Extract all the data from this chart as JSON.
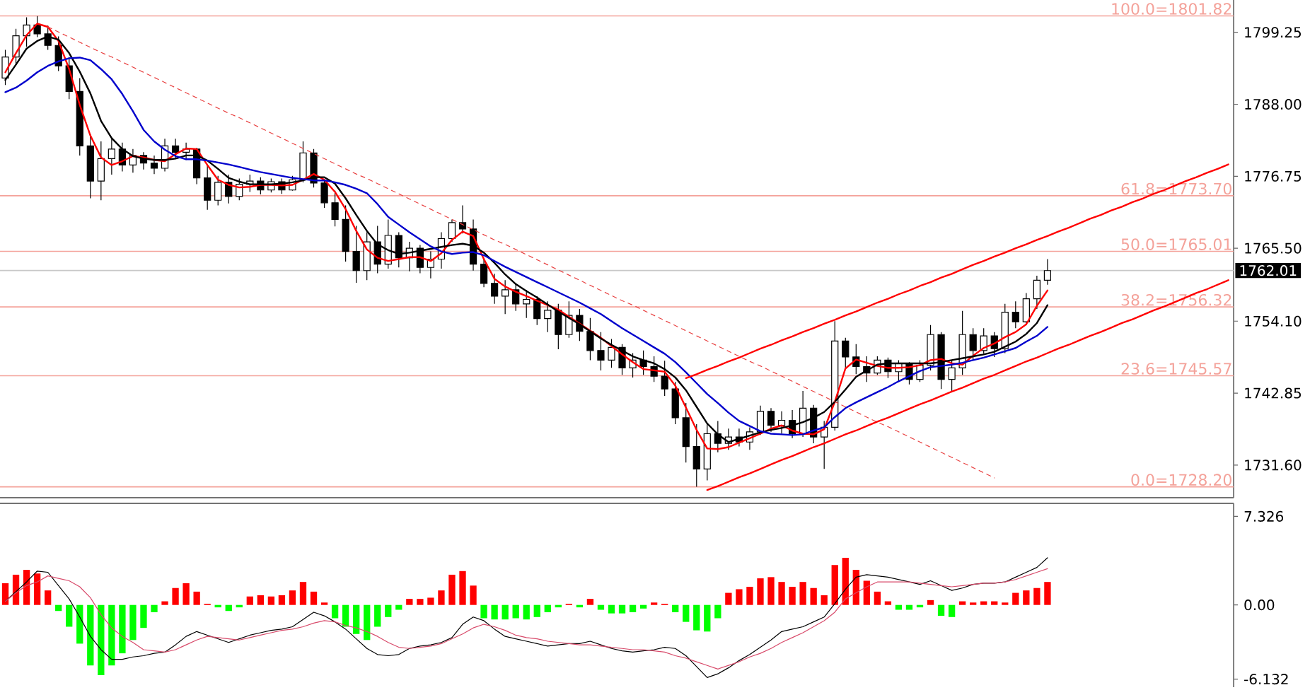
{
  "chart_data": [
    {
      "type": "candlestick",
      "categories": [
        null,
        null,
        null,
        null,
        null,
        null,
        null,
        null,
        null,
        null,
        null,
        null,
        null,
        null,
        null,
        null,
        null,
        null,
        null,
        null,
        null,
        null,
        null,
        null,
        null,
        null,
        null,
        null,
        null,
        null,
        null,
        null,
        null,
        null,
        null,
        null,
        null,
        null,
        null,
        null,
        null,
        null,
        null,
        null,
        null,
        null,
        null,
        null,
        null,
        null,
        null,
        null,
        null,
        null,
        null,
        null,
        null,
        null,
        null,
        null,
        null,
        null,
        null,
        null,
        null,
        null,
        null,
        null,
        null,
        null,
        null,
        null,
        null,
        null,
        null,
        null,
        null,
        null,
        null,
        null,
        null,
        null,
        null,
        null,
        null,
        null,
        null,
        null,
        null,
        null,
        null,
        null,
        null,
        null,
        null,
        null,
        null,
        null,
        null,
        null,
        null,
        null,
        null,
        null,
        null,
        null,
        null,
        null,
        null,
        null,
        null,
        null,
        null,
        null,
        null,
        null
      ],
      "ohlc": [
        [
          1792.1,
          1796.5,
          1791.0,
          1795.4
        ],
        [
          1795.4,
          1799.8,
          1794.3,
          1798.7
        ],
        [
          1798.7,
          1801.6,
          1797.0,
          1800.4
        ],
        [
          1800.4,
          1801.8,
          1798.5,
          1799.0
        ],
        [
          1799.0,
          1800.3,
          1796.5,
          1797.2
        ],
        [
          1797.2,
          1798.6,
          1793.2,
          1794.0
        ],
        [
          1794.0,
          1795.4,
          1788.8,
          1790.0
        ],
        [
          1790.0,
          1792.1,
          1780.0,
          1781.5
        ],
        [
          1781.5,
          1783.3,
          1773.3,
          1776.0
        ],
        [
          1776.0,
          1782.2,
          1773.0,
          1779.5
        ],
        [
          1779.5,
          1782.8,
          1777.0,
          1781.0
        ],
        [
          1781.0,
          1782.0,
          1777.5,
          1778.5
        ],
        [
          1778.5,
          1781.0,
          1777.3,
          1780.0
        ],
        [
          1780.0,
          1780.5,
          1777.8,
          1778.8
        ],
        [
          1778.8,
          1780.0,
          1777.1,
          1778.0
        ],
        [
          1778.0,
          1782.6,
          1777.5,
          1781.5
        ],
        [
          1781.5,
          1782.6,
          1779.5,
          1780.5
        ],
        [
          1780.5,
          1782.0,
          1779.3,
          1781.0
        ],
        [
          1781.0,
          1781.2,
          1775.5,
          1776.5
        ],
        [
          1776.5,
          1778.5,
          1771.5,
          1773.0
        ],
        [
          1773.0,
          1776.8,
          1772.2,
          1775.8
        ],
        [
          1775.8,
          1777.0,
          1772.5,
          1773.6
        ],
        [
          1773.6,
          1776.4,
          1773.0,
          1775.5
        ],
        [
          1775.5,
          1777.0,
          1774.3,
          1776.0
        ],
        [
          1776.0,
          1776.6,
          1773.9,
          1774.6
        ],
        [
          1774.6,
          1776.4,
          1774.2,
          1775.9
        ],
        [
          1775.9,
          1776.4,
          1774.0,
          1774.6
        ],
        [
          1774.6,
          1776.8,
          1774.5,
          1776.2
        ],
        [
          1776.2,
          1782.2,
          1775.8,
          1780.4
        ],
        [
          1780.4,
          1781.0,
          1775.0,
          1775.7
        ],
        [
          1775.7,
          1776.0,
          1771.8,
          1772.6
        ],
        [
          1772.6,
          1774.5,
          1768.9,
          1770.0
        ],
        [
          1770.0,
          1772.2,
          1763.4,
          1765.0
        ],
        [
          1765.0,
          1769.0,
          1760.1,
          1762.0
        ],
        [
          1762.0,
          1768.0,
          1760.5,
          1766.5
        ],
        [
          1766.5,
          1769.0,
          1761.6,
          1763.0
        ],
        [
          1763.0,
          1770.0,
          1762.3,
          1767.5
        ],
        [
          1767.5,
          1768.0,
          1762.5,
          1764.0
        ],
        [
          1764.0,
          1766.5,
          1761.9,
          1765.5
        ],
        [
          1765.5,
          1766.0,
          1761.6,
          1762.5
        ],
        [
          1762.5,
          1765.0,
          1760.8,
          1763.8
        ],
        [
          1763.8,
          1768.0,
          1762.3,
          1767.0
        ],
        [
          1767.0,
          1770.0,
          1766.5,
          1769.5
        ],
        [
          1769.5,
          1772.2,
          1767.8,
          1768.5
        ],
        [
          1768.5,
          1770.0,
          1762.0,
          1763.0
        ],
        [
          1763.0,
          1764.0,
          1759.4,
          1760.0
        ],
        [
          1760.0,
          1761.5,
          1756.8,
          1758.0
        ],
        [
          1758.0,
          1760.5,
          1755.2,
          1759.0
        ],
        [
          1759.0,
          1760.0,
          1755.7,
          1756.8
        ],
        [
          1756.8,
          1759.0,
          1754.6,
          1757.5
        ],
        [
          1757.5,
          1758.0,
          1753.5,
          1754.5
        ],
        [
          1754.5,
          1757.2,
          1752.4,
          1755.8
        ],
        [
          1755.8,
          1756.8,
          1749.7,
          1752.0
        ],
        [
          1752.0,
          1757.2,
          1751.5,
          1755.0
        ],
        [
          1755.0,
          1756.0,
          1751.0,
          1752.5
        ],
        [
          1752.5,
          1754.6,
          1748.0,
          1749.5
        ],
        [
          1749.5,
          1752.4,
          1746.4,
          1748.0
        ],
        [
          1748.0,
          1751.3,
          1746.8,
          1750.0
        ],
        [
          1750.0,
          1750.5,
          1745.7,
          1746.8
        ],
        [
          1746.8,
          1749.1,
          1745.3,
          1748.0
        ],
        [
          1748.0,
          1749.5,
          1745.7,
          1747.0
        ],
        [
          1747.0,
          1748.6,
          1744.6,
          1745.5
        ],
        [
          1745.5,
          1747.9,
          1742.4,
          1743.5
        ],
        [
          1743.5,
          1744.6,
          1738.0,
          1739.0
        ],
        [
          1739.0,
          1741.3,
          1732.0,
          1734.5
        ],
        [
          1734.5,
          1738.0,
          1728.2,
          1731.0
        ],
        [
          1731.0,
          1738.0,
          1729.2,
          1736.5
        ],
        [
          1736.5,
          1738.5,
          1733.6,
          1735.0
        ],
        [
          1735.0,
          1737.3,
          1734.0,
          1736.0
        ],
        [
          1736.0,
          1737.3,
          1734.5,
          1735.2
        ],
        [
          1735.2,
          1737.5,
          1734.0,
          1736.8
        ],
        [
          1736.8,
          1740.9,
          1736.3,
          1740.0
        ],
        [
          1740.0,
          1740.5,
          1736.8,
          1737.8
        ],
        [
          1737.8,
          1740.0,
          1736.5,
          1738.6
        ],
        [
          1738.6,
          1740.2,
          1735.8,
          1736.5
        ],
        [
          1736.5,
          1743.2,
          1736.0,
          1740.5
        ],
        [
          1740.5,
          1741.0,
          1735.0,
          1736.0
        ],
        [
          1736.0,
          1738.5,
          1731.0,
          1737.5
        ],
        [
          1737.5,
          1754.1,
          1737.0,
          1751.0
        ],
        [
          1751.0,
          1751.5,
          1746.8,
          1748.5
        ],
        [
          1748.5,
          1750.5,
          1745.8,
          1747.0
        ],
        [
          1747.0,
          1748.6,
          1744.6,
          1746.0
        ],
        [
          1746.0,
          1748.6,
          1745.7,
          1748.0
        ],
        [
          1748.0,
          1748.4,
          1745.2,
          1746.2
        ],
        [
          1746.2,
          1748.0,
          1744.6,
          1747.5
        ],
        [
          1747.5,
          1747.7,
          1744.2,
          1745.0
        ],
        [
          1745.0,
          1748.0,
          1744.6,
          1747.2
        ],
        [
          1747.2,
          1753.5,
          1746.4,
          1752.0
        ],
        [
          1752.0,
          1752.4,
          1743.5,
          1745.0
        ],
        [
          1745.0,
          1748.0,
          1743.1,
          1746.8
        ],
        [
          1746.8,
          1755.7,
          1745.7,
          1752.0
        ],
        [
          1752.0,
          1753.0,
          1748.0,
          1749.5
        ],
        [
          1749.5,
          1753.0,
          1749.0,
          1751.8
        ],
        [
          1751.8,
          1752.4,
          1748.5,
          1749.8
        ],
        [
          1749.8,
          1756.8,
          1749.1,
          1755.5
        ],
        [
          1755.5,
          1757.2,
          1753.0,
          1754.0
        ],
        [
          1754.0,
          1758.5,
          1753.5,
          1757.6
        ],
        [
          1757.6,
          1761.2,
          1756.0,
          1760.5
        ],
        [
          1760.5,
          1763.8,
          1759.8,
          1762.0
        ],
        null,
        null,
        null,
        null,
        null,
        null,
        null,
        null,
        null,
        null,
        null,
        null,
        null,
        null,
        null,
        null,
        null
      ],
      "color": "#000000",
      "ylim": [
        1726.5,
        1804.3
      ],
      "yticks": [
        {
          "value": 1731.6,
          "label": "1731.60"
        },
        1742.85,
        {
          "value": 1754.1,
          "label": "1754.10"
        },
        {
          "value": 1765.5,
          "label": "1765.50"
        },
        1776.75,
        {
          "value": 1788,
          "label": "1788.00"
        },
        1799.25
      ],
      "tick_labels": "y",
      "series": [
        {
          "type": "line",
          "color": "#ff0000",
          "values": [
            1793.0,
            1796.0,
            1798.8,
            1800.6,
            1800.1,
            1797.9,
            1793.5,
            1787.9,
            1783.1,
            1779.7,
            1778.5,
            1779.1,
            1779.9,
            1779.7,
            1779.3,
            1779.1,
            1780.2,
            1781.1,
            1781.0,
            1778.5,
            1776.2,
            1775.4,
            1775.0,
            1775.1,
            1775.4,
            1775.4,
            1775.3,
            1775.4,
            1776.2,
            1777.1,
            1776.2,
            1774.3,
            1771.6,
            1768.2,
            1765.3,
            1764.0,
            1763.5,
            1763.8,
            1764.1,
            1764.1,
            1763.5,
            1764.7,
            1766.8,
            1768.1,
            1767.4,
            1763.8,
            1760.7,
            1759.5,
            1758.7,
            1758.0,
            1757.3,
            1756.6,
            1755.9,
            1754.8,
            1753.7,
            1752.6,
            1751.5,
            1750.2,
            1748.9,
            1747.7,
            1746.6,
            1746.4,
            1746.2,
            1744.0,
            1740.6,
            1737.1,
            1734.2,
            1734.1,
            1734.4,
            1735.1,
            1735.8,
            1736.5,
            1737.3,
            1737.8,
            1737.0,
            1736.5,
            1736.4,
            1737.2,
            1741.5,
            1746.7,
            1748.1,
            1747.6,
            1747.1,
            1746.8,
            1746.8,
            1746.9,
            1747.2,
            1748.0,
            1748.2,
            1747.5,
            1747.3,
            1748.7,
            1749.9,
            1750.6,
            1751.6,
            1752.4,
            1753.6,
            1756.5,
            1758.9,
            null,
            null,
            null,
            null,
            null,
            null,
            null,
            null,
            null,
            null,
            null,
            null,
            null,
            null,
            null,
            null,
            null
          ]
        },
        {
          "type": "line",
          "color": "#000000",
          "values": [
            1791.8,
            1794.2,
            1796.7,
            1797.9,
            1798.6,
            1798.1,
            1796.0,
            1793.1,
            1789.7,
            1785.4,
            1782.7,
            1781.0,
            1779.9,
            1779.5,
            1779.3,
            1779.3,
            1779.5,
            1780.0,
            1780.0,
            1779.2,
            1777.9,
            1776.5,
            1775.9,
            1775.5,
            1775.5,
            1775.5,
            1775.6,
            1775.8,
            1776.1,
            1776.6,
            1776.6,
            1775.6,
            1773.3,
            1770.7,
            1768.2,
            1766.1,
            1765.2,
            1764.6,
            1764.8,
            1765.1,
            1765.4,
            1765.7,
            1766.0,
            1766.2,
            1765.9,
            1764.8,
            1763.2,
            1761.4,
            1759.9,
            1758.8,
            1757.8,
            1756.7,
            1755.6,
            1754.6,
            1753.6,
            1752.5,
            1751.4,
            1750.4,
            1749.5,
            1748.6,
            1748.0,
            1747.5,
            1746.6,
            1745.3,
            1743.3,
            1740.7,
            1738.1,
            1736.4,
            1735.2,
            1735.7,
            1736.2,
            1736.7,
            1737.1,
            1737.4,
            1737.8,
            1738.3,
            1739.0,
            1739.9,
            1741.5,
            1743.4,
            1745.4,
            1746.4,
            1747.3,
            1747.5,
            1747.5,
            1747.5,
            1747.5,
            1747.5,
            1747.7,
            1748.0,
            1748.3,
            1748.6,
            1748.9,
            1749.3,
            1750.1,
            1750.9,
            1752.1,
            1753.8,
            1756.6,
            null,
            null,
            null,
            null,
            null,
            null,
            null,
            null,
            null,
            null,
            null,
            null,
            null,
            null,
            null,
            null,
            null
          ]
        },
        {
          "type": "line",
          "color": "#0000cc",
          "values": [
            1789.9,
            1790.6,
            1791.7,
            1793.0,
            1794.0,
            1794.7,
            1795.2,
            1795.3,
            1794.9,
            1793.5,
            1791.9,
            1789.6,
            1786.9,
            1784.0,
            1782.2,
            1780.9,
            1779.9,
            1779.4,
            1779.4,
            1779.2,
            1778.9,
            1778.6,
            1778.2,
            1777.8,
            1777.4,
            1777.1,
            1776.8,
            1776.5,
            1776.3,
            1776.1,
            1776.1,
            1775.8,
            1775.4,
            1774.8,
            1774.1,
            1772.4,
            1770.4,
            1769.2,
            1768.0,
            1766.9,
            1765.8,
            1765.0,
            1764.6,
            1764.8,
            1764.9,
            1764.4,
            1763.5,
            1762.6,
            1761.8,
            1761.0,
            1760.2,
            1759.4,
            1758.6,
            1757.8,
            1757.0,
            1756.1,
            1755.2,
            1754.1,
            1753.0,
            1752.0,
            1751.0,
            1750.0,
            1749.0,
            1747.7,
            1746.1,
            1744.4,
            1742.7,
            1741.3,
            1739.8,
            1738.5,
            1737.7,
            1736.9,
            1736.5,
            1736.4,
            1736.3,
            1736.4,
            1737.0,
            1737.5,
            1739.1,
            1740.5,
            1741.4,
            1742.2,
            1743.0,
            1743.8,
            1744.7,
            1745.5,
            1746.3,
            1746.9,
            1747.1,
            1747.3,
            1747.6,
            1748.0,
            1748.4,
            1748.9,
            1749.4,
            1749.9,
            1750.9,
            1751.8,
            1753.2,
            null,
            null,
            null,
            null,
            null,
            null,
            null,
            null,
            null,
            null,
            null,
            null,
            null,
            null,
            null,
            null,
            null
          ]
        },
        {
          "type": "line",
          "color": "#e84040",
          "line_style": "dashed",
          "values": [
            null,
            null,
            null,
            null,
            1800.1,
            1799.3,
            1798.5,
            1797.7,
            1796.9,
            1796.1,
            1795.4,
            1794.6,
            1793.8,
            1793.0,
            1792.2,
            1791.4,
            1790.6,
            1789.8,
            1789.0,
            1788.2,
            1787.4,
            1786.6,
            1785.9,
            1785.1,
            1784.3,
            1783.5,
            1782.7,
            1781.9,
            1781.1,
            1780.3,
            1779.5,
            1778.7,
            1777.9,
            1777.1,
            1776.4,
            1775.6,
            1774.8,
            1774.0,
            1773.2,
            1772.4,
            1771.6,
            1770.8,
            1770.0,
            1769.2,
            1768.4,
            1767.6,
            1766.8,
            1766.1,
            1765.3,
            1764.5,
            1763.7,
            1762.9,
            1762.1,
            1761.3,
            1760.5,
            1759.7,
            1758.9,
            1758.1,
            1757.3,
            1756.6,
            1755.8,
            1755.0,
            1754.2,
            1753.4,
            1752.6,
            1751.8,
            1751.0,
            1750.2,
            1749.4,
            1748.6,
            1747.8,
            1747.1,
            1746.3,
            1745.5,
            1744.7,
            1743.9,
            1743.1,
            1742.3,
            1741.5,
            1740.7,
            1739.9,
            1739.1,
            1738.3,
            1737.6,
            1736.8,
            1736.0,
            1735.2,
            1734.4,
            1733.6,
            1732.8,
            1732.0,
            1731.2,
            1730.4,
            1729.6,
            null,
            null,
            null,
            null,
            null,
            null,
            null,
            null,
            null,
            null,
            null,
            null,
            null,
            null,
            null,
            null,
            null,
            null,
            null,
            null,
            null,
            null
          ]
        },
        {
          "type": "line",
          "color": "#ff0000",
          "values": [
            null,
            null,
            null,
            null,
            null,
            null,
            null,
            null,
            null,
            null,
            null,
            null,
            null,
            null,
            null,
            null,
            null,
            null,
            null,
            null,
            null,
            null,
            null,
            null,
            null,
            null,
            null,
            null,
            null,
            null,
            null,
            null,
            null,
            null,
            null,
            null,
            null,
            null,
            null,
            null,
            null,
            null,
            null,
            null,
            null,
            null,
            null,
            null,
            null,
            null,
            null,
            null,
            null,
            null,
            null,
            null,
            null,
            null,
            null,
            null,
            null,
            null,
            null,
            null,
            1745.2,
            1745.8,
            1746.5,
            1747.1,
            1747.8,
            1748.4,
            1749.1,
            1749.8,
            1750.4,
            1751.1,
            1751.7,
            1752.4,
            1753.0,
            1753.7,
            1754.3,
            1755.0,
            1755.6,
            1756.3,
            1757.0,
            1757.6,
            1758.3,
            1758.9,
            1759.6,
            1760.2,
            1760.9,
            1761.5,
            1762.2,
            1762.9,
            1763.5,
            1764.2,
            1764.8,
            1765.5,
            1766.1,
            1766.8,
            1767.4,
            1768.1,
            1768.7,
            1769.4,
            1770.1,
            1770.7,
            1771.4,
            1772.0,
            1772.7,
            1773.3,
            1774.0,
            1774.6,
            1775.3,
            1776.0,
            1776.6,
            1777.3,
            1777.9,
            1778.6
          ]
        },
        {
          "type": "line",
          "color": "#ff0000",
          "values": [
            null,
            null,
            null,
            null,
            null,
            null,
            null,
            null,
            null,
            null,
            null,
            null,
            null,
            null,
            null,
            null,
            null,
            null,
            null,
            null,
            null,
            null,
            null,
            null,
            null,
            null,
            null,
            null,
            null,
            null,
            null,
            null,
            null,
            null,
            null,
            null,
            null,
            null,
            null,
            null,
            null,
            null,
            null,
            null,
            null,
            null,
            null,
            null,
            null,
            null,
            null,
            null,
            null,
            null,
            null,
            null,
            null,
            null,
            null,
            null,
            null,
            null,
            null,
            null,
            null,
            null,
            1727.7,
            1728.3,
            1729.0,
            1729.7,
            1730.3,
            1731.0,
            1731.7,
            1732.4,
            1733.0,
            1733.7,
            1734.4,
            1735.0,
            1735.7,
            1736.4,
            1737.0,
            1737.7,
            1738.4,
            1739.0,
            1739.7,
            1740.4,
            1741.1,
            1741.7,
            1742.4,
            1743.1,
            1743.7,
            1744.4,
            1745.1,
            1745.7,
            1746.4,
            1747.1,
            1747.8,
            1748.4,
            1749.1,
            1749.8,
            1750.4,
            1751.1,
            1751.8,
            1752.4,
            1753.1,
            1753.8,
            1754.4,
            1755.1,
            1755.8,
            1756.4,
            1757.1,
            1757.8,
            1758.5,
            1759.1,
            1759.8,
            1760.5
          ]
        }
      ],
      "ref_lines": [
        {
          "axis": "y",
          "value": 1801.82,
          "label": "100.0=1801.82",
          "color": "#f4a29a"
        },
        {
          "axis": "y",
          "value": 1773.7,
          "label": "61.8=1773.70",
          "color": "#f4a29a"
        },
        {
          "axis": "y",
          "value": 1765.01,
          "label": "50.0=1765.01",
          "color": "#f4a29a"
        },
        {
          "axis": "y",
          "value": 1756.32,
          "label": "38.2=1756.32",
          "color": "#f4a29a"
        },
        {
          "axis": "y",
          "value": 1745.57,
          "label": "23.6=1745.57",
          "color": "#f4a29a"
        },
        {
          "axis": "y",
          "value": 1728.2,
          "label": "0.0=1728.20",
          "color": "#f4a29a"
        },
        {
          "axis": "y",
          "value": 1762.01,
          "label": "1762.01",
          "color": "#c8c8c8"
        }
      ]
    },
    {
      "type": "bar",
      "categories": [
        null,
        null,
        null,
        null,
        null,
        null,
        null,
        null,
        null,
        null,
        null,
        null,
        null,
        null,
        null,
        null,
        null,
        null,
        null,
        null,
        null,
        null,
        null,
        null,
        null,
        null,
        null,
        null,
        null,
        null,
        null,
        null,
        null,
        null,
        null,
        null,
        null,
        null,
        null,
        null,
        null,
        null,
        null,
        null,
        null,
        null,
        null,
        null,
        null,
        null,
        null,
        null,
        null,
        null,
        null,
        null,
        null,
        null,
        null,
        null,
        null,
        null,
        null,
        null,
        null,
        null,
        null,
        null,
        null,
        null,
        null,
        null,
        null,
        null,
        null,
        null,
        null,
        null,
        null,
        null,
        null,
        null,
        null,
        null,
        null,
        null,
        null,
        null,
        null,
        null,
        null,
        null,
        null,
        null,
        null,
        null,
        null,
        null,
        null,
        null,
        null,
        null,
        null,
        null,
        null,
        null,
        null,
        null,
        null,
        null,
        null,
        null,
        null,
        null,
        null,
        null
      ],
      "ylim": [
        -6.8,
        8.4
      ],
      "yticks": [
        -6.132,
        {
          "value": 0,
          "label": "0.00"
        },
        7.326
      ],
      "tick_labels": "y",
      "series": [
        {
          "color": "#ff0000",
          "values": [
            1.8,
            2.5,
            2.9,
            2.6,
            1.2,
            null,
            null,
            null,
            null,
            null,
            null,
            null,
            null,
            null,
            null,
            0.3,
            1.4,
            1.8,
            1.1,
            0.1,
            null,
            null,
            null,
            0.7,
            0.8,
            0.7,
            0.8,
            1.2,
            1.9,
            1.1,
            0.2,
            null,
            null,
            null,
            null,
            null,
            null,
            null,
            0.5,
            0.5,
            0.6,
            1.2,
            2.5,
            2.8,
            1.6,
            null,
            null,
            null,
            null,
            null,
            null,
            null,
            null,
            0.1,
            null,
            0.5,
            null,
            null,
            null,
            null,
            null,
            0.2,
            0.1,
            null,
            null,
            null,
            null,
            null,
            1.0,
            1.3,
            1.5,
            2.2,
            2.3,
            1.9,
            1.5,
            1.9,
            1.4,
            0.8,
            3.3,
            3.9,
            2.9,
            2.0,
            1.1,
            0.3,
            null,
            null,
            null,
            0.4,
            null,
            null,
            0.3,
            0.2,
            0.3,
            0.3,
            0.2,
            1.0,
            1.2,
            1.4,
            1.9,
            null,
            null,
            null,
            null,
            null,
            null,
            null,
            null,
            null,
            null,
            null,
            null,
            null,
            null,
            null,
            null,
            null
          ]
        },
        {
          "color": "#00ff00",
          "values": [
            null,
            null,
            null,
            null,
            null,
            -0.5,
            -1.8,
            -3.2,
            -5.0,
            -5.8,
            -5.0,
            -4.0,
            -2.9,
            -1.9,
            -0.6,
            null,
            null,
            null,
            null,
            null,
            -0.2,
            -0.5,
            -0.2,
            null,
            null,
            null,
            null,
            null,
            null,
            null,
            null,
            -1.1,
            -1.8,
            -2.4,
            -2.9,
            -1.8,
            -1.0,
            -0.4,
            null,
            null,
            null,
            null,
            null,
            null,
            null,
            -1.1,
            -1.2,
            -1.2,
            -1.1,
            -1.2,
            -1.0,
            -0.6,
            -0.2,
            null,
            -0.2,
            null,
            -0.4,
            -0.7,
            -0.7,
            -0.6,
            -0.3,
            null,
            null,
            -0.6,
            -1.4,
            -2.1,
            -2.2,
            -1.1,
            null,
            null,
            null,
            null,
            null,
            null,
            null,
            null,
            null,
            null,
            null,
            null,
            null,
            null,
            null,
            null,
            -0.4,
            -0.4,
            -0.2,
            null,
            -0.9,
            -1.0,
            null,
            null,
            null,
            null,
            null,
            null,
            null,
            null,
            null,
            null,
            null,
            null,
            null,
            null,
            null,
            null,
            null,
            null,
            null,
            null,
            null,
            null,
            null,
            null,
            null,
            null
          ]
        },
        {
          "type": "line",
          "color": "#000000",
          "values": [
            0.3,
            1.1,
            1.9,
            2.8,
            2.7,
            1.6,
            0.5,
            -1.0,
            -2.6,
            -3.7,
            -4.5,
            -4.5,
            -4.3,
            -4.2,
            -4.0,
            -3.9,
            -3.3,
            -2.6,
            -2.2,
            -2.5,
            -2.8,
            -3.1,
            -2.8,
            -2.5,
            -2.3,
            -2.1,
            -2.0,
            -1.8,
            -1.2,
            -0.6,
            -0.9,
            -1.4,
            -2.0,
            -2.8,
            -3.6,
            -4.1,
            -4.2,
            -4.1,
            -3.6,
            -3.4,
            -3.3,
            -3.1,
            -2.7,
            -1.6,
            -1.0,
            -1.3,
            -2.0,
            -2.6,
            -2.8,
            -3.0,
            -3.2,
            -3.4,
            -3.3,
            -3.2,
            -3.2,
            -3.0,
            -3.3,
            -3.6,
            -3.8,
            -3.9,
            -3.8,
            -3.7,
            -3.5,
            -3.6,
            -4.2,
            -5.1,
            -6.0,
            -5.7,
            -5.2,
            -4.6,
            -4.1,
            -3.5,
            -2.9,
            -2.2,
            -2.0,
            -1.8,
            -1.4,
            -1.0,
            0.1,
            1.3,
            2.3,
            2.5,
            2.4,
            2.3,
            2.1,
            1.9,
            1.7,
            2.0,
            1.6,
            1.2,
            1.4,
            1.7,
            1.8,
            1.8,
            1.9,
            2.3,
            2.7,
            3.1,
            3.9,
            null,
            null,
            null,
            null,
            null,
            null,
            null,
            null,
            null,
            null,
            null,
            null,
            null,
            null,
            null,
            null,
            null
          ]
        },
        {
          "type": "line",
          "color": "#d84a6a",
          "values": [
            0.3,
            1.0,
            1.6,
            1.9,
            2.4,
            2.2,
            2.0,
            1.5,
            0.6,
            -0.8,
            -1.9,
            -2.6,
            -3.1,
            -3.7,
            -3.8,
            -3.9,
            -3.7,
            -3.3,
            -2.9,
            -2.6,
            -2.7,
            -2.8,
            -2.9,
            -2.7,
            -2.5,
            -2.3,
            -2.1,
            -2.0,
            -1.8,
            -1.5,
            -1.3,
            -1.4,
            -1.7,
            -1.9,
            -2.2,
            -2.6,
            -3.1,
            -3.5,
            -3.6,
            -3.5,
            -3.4,
            -3.2,
            -2.8,
            -2.4,
            -1.9,
            -1.6,
            -1.8,
            -2.1,
            -2.5,
            -2.7,
            -2.8,
            -3.0,
            -3.1,
            -3.2,
            -3.3,
            -3.3,
            -3.4,
            -3.5,
            -3.6,
            -3.7,
            -3.7,
            -3.8,
            -3.9,
            -4.2,
            -4.4,
            -4.7,
            -5.0,
            -5.3,
            -5.0,
            -4.7,
            -4.3,
            -4.0,
            -3.6,
            -3.1,
            -2.7,
            -2.3,
            -1.8,
            -1.3,
            -0.6,
            0.5,
            1.0,
            1.5,
            1.9,
            1.9,
            1.9,
            1.9,
            1.8,
            1.7,
            1.6,
            1.5,
            1.6,
            1.7,
            1.8,
            1.8,
            1.9,
            2.1,
            2.4,
            2.7,
            3.0,
            null,
            null,
            null,
            null,
            null,
            null,
            null,
            null,
            null,
            null,
            null,
            null,
            null,
            null,
            null,
            null,
            null
          ]
        }
      ]
    }
  ]
}
